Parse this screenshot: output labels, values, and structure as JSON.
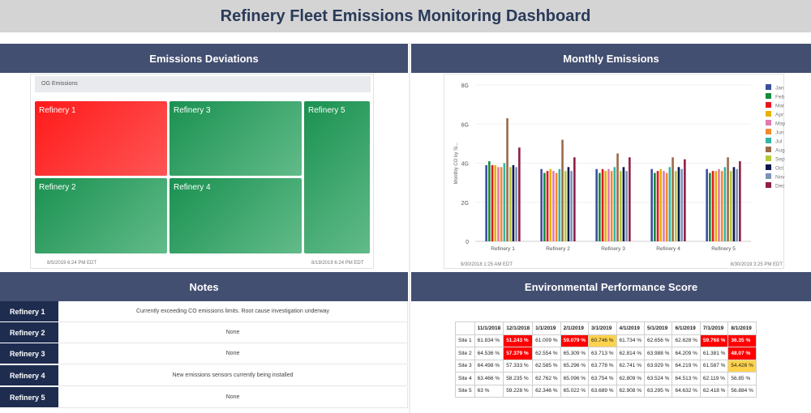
{
  "title": "Refinery Fleet Emissions Monitoring Dashboard",
  "panels": {
    "deviations": "Emissions Deviations",
    "monthly": "Monthly Emissions",
    "notes": "Notes",
    "score": "Environmental Performance Score"
  },
  "treemap": {
    "label": "OG Emissions",
    "tiles": [
      "Refinery 1",
      "Refinery 3",
      "Refinery 5",
      "Refinery 2",
      "Refinery 4"
    ],
    "date_left": "8/5/2019 6:24 PM  EDT",
    "date_right": "8/19/2019 6:24 PM  EDT"
  },
  "chart_data": {
    "type": "bar",
    "title": "",
    "xlabel": "",
    "ylabel": "Monthly CO by Si...",
    "categories": [
      "Refinery 1",
      "Refinery 2",
      "Refinery 3",
      "Refinery 4",
      "Refinery 5"
    ],
    "yticks": [
      "0",
      "2G",
      "4G",
      "6G",
      "8G"
    ],
    "ylim": [
      0,
      8
    ],
    "legend_position": "right",
    "series": [
      {
        "name": "Jan",
        "color": "#3a4fa0",
        "values": [
          3.9,
          3.7,
          3.7,
          3.7,
          3.7
        ]
      },
      {
        "name": "Feb",
        "color": "#178a3c",
        "values": [
          4.1,
          3.5,
          3.5,
          3.5,
          3.5
        ]
      },
      {
        "name": "Mar",
        "color": "#e8161b",
        "values": [
          3.9,
          3.6,
          3.7,
          3.6,
          3.6
        ]
      },
      {
        "name": "Apr",
        "color": "#e8b000",
        "values": [
          3.9,
          3.7,
          3.6,
          3.7,
          3.6
        ]
      },
      {
        "name": "May",
        "color": "#e07ab0",
        "values": [
          3.8,
          3.6,
          3.7,
          3.6,
          3.7
        ]
      },
      {
        "name": "Jun",
        "color": "#f28a30",
        "values": [
          3.8,
          3.5,
          3.6,
          3.5,
          3.6
        ]
      },
      {
        "name": "Jul",
        "color": "#33b5a5",
        "values": [
          4.0,
          3.7,
          3.8,
          3.8,
          3.8
        ]
      },
      {
        "name": "Aug",
        "color": "#9c6a48",
        "values": [
          6.3,
          5.2,
          4.5,
          4.3,
          4.3
        ]
      },
      {
        "name": "Sep",
        "color": "#b5c93a",
        "values": [
          3.8,
          3.6,
          3.6,
          3.6,
          3.6
        ]
      },
      {
        "name": "Oct",
        "color": "#0d1650",
        "values": [
          3.9,
          3.8,
          3.8,
          3.8,
          3.8
        ]
      },
      {
        "name": "Nov",
        "color": "#7c92b8",
        "values": [
          3.8,
          3.6,
          3.6,
          3.7,
          3.7
        ]
      },
      {
        "name": "Dec",
        "color": "#8f1f45",
        "values": [
          4.8,
          4.3,
          4.3,
          4.2,
          4.1
        ]
      }
    ]
  },
  "chart_dates": {
    "left": "9/30/2018 1:25 AM  EDT",
    "right": "8/30/2019 3:25 PM  EDT"
  },
  "notes": [
    {
      "key": "Refinery 1",
      "value": "Currently exceeding CO emissions limits.  Root cause investigation underway"
    },
    {
      "key": "Refinery 2",
      "value": "None"
    },
    {
      "key": "Refinery 3",
      "value": "None"
    },
    {
      "key": "Refinery 4",
      "value": "New emissions sensors currently being installed"
    },
    {
      "key": "Refinery 5",
      "value": "None"
    }
  ],
  "score": {
    "columns": [
      "",
      "11/1/2018",
      "12/1/2018",
      "1/1/2019",
      "2/1/2019",
      "3/1/2019",
      "4/1/2019",
      "5/1/2019",
      "6/1/2019",
      "7/1/2019",
      "8/1/2019"
    ],
    "rows": [
      {
        "site": "Site 1",
        "cells": [
          "61.834 %",
          "51.243 %",
          "61.009 %",
          "59.079 %",
          "60.746 %",
          "61.734 %",
          "62.656 %",
          "62.628 %",
          "59.768 %",
          "36.35 %"
        ],
        "status": [
          "",
          "bad",
          "",
          "bad",
          "warn",
          "",
          "",
          "",
          "bad",
          "bad"
        ]
      },
      {
        "site": "Site 2",
        "cells": [
          "64.536 %",
          "57.379 %",
          "62.554 %",
          "65.309 %",
          "63.713 %",
          "62.814 %",
          "63.988 %",
          "64.209 %",
          "61.381 %",
          "48.07 %"
        ],
        "status": [
          "",
          "bad",
          "",
          "",
          "",
          "",
          "",
          "",
          "",
          "bad"
        ]
      },
      {
        "site": "Site 3",
        "cells": [
          "64.498 %",
          "57.333 %",
          "62.585 %",
          "65.296 %",
          "63.778 %",
          "62.741 %",
          "63.929 %",
          "64.219 %",
          "61.587 %",
          "54.426 %"
        ],
        "status": [
          "",
          "",
          "",
          "",
          "",
          "",
          "",
          "",
          "",
          "warn"
        ]
      },
      {
        "site": "Site 4",
        "cells": [
          "63.466 %",
          "58.235 %",
          "62.762 %",
          "65.096 %",
          "63.754 %",
          "62.809 %",
          "63.524 %",
          "64.513 %",
          "62.119 %",
          "56.85 %"
        ],
        "status": [
          "",
          "",
          "",
          "",
          "",
          "",
          "",
          "",
          "",
          ""
        ]
      },
      {
        "site": "Site 5",
        "cells": [
          "63 %",
          "59.228 %",
          "62.346 %",
          "65.022 %",
          "63.689 %",
          "62.908 %",
          "63.295 %",
          "64.632 %",
          "62.418 %",
          "56.884 %"
        ],
        "status": [
          "",
          "",
          "",
          "",
          "",
          "",
          "",
          "",
          "",
          ""
        ]
      }
    ]
  }
}
